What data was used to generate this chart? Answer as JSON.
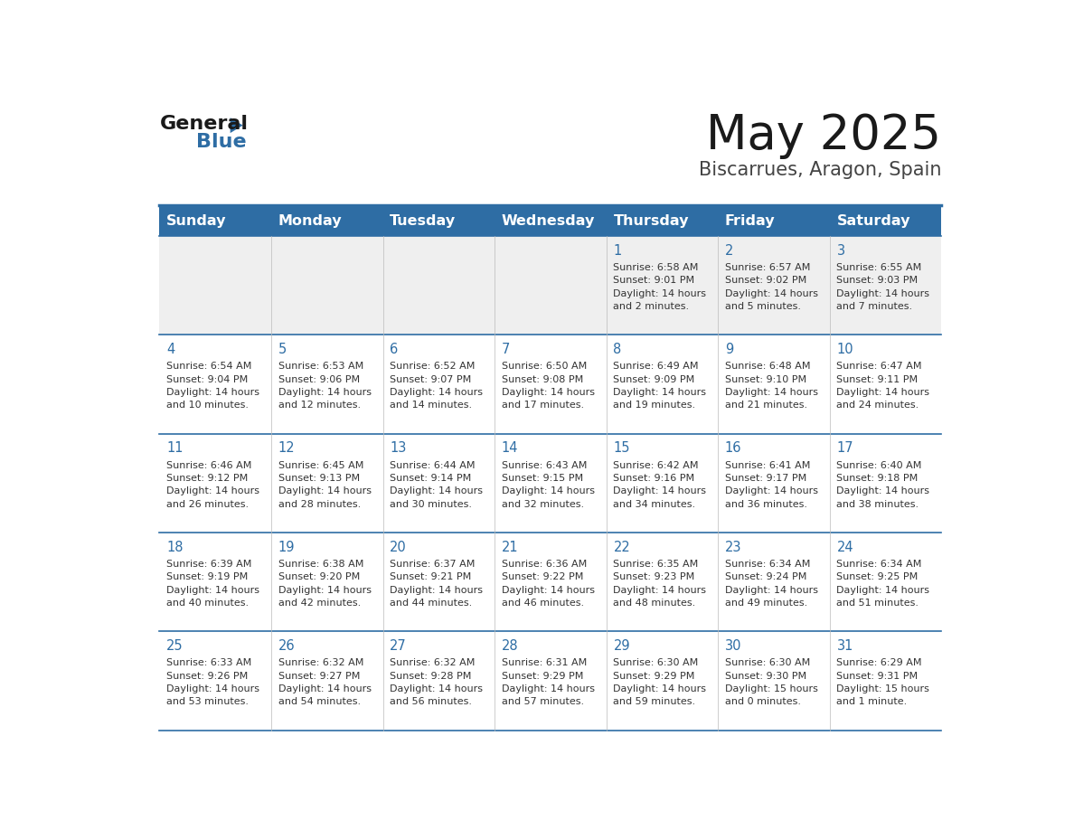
{
  "title": "May 2025",
  "subtitle": "Biscarrues, Aragon, Spain",
  "days_of_week": [
    "Sunday",
    "Monday",
    "Tuesday",
    "Wednesday",
    "Thursday",
    "Friday",
    "Saturday"
  ],
  "header_bg": "#2E6DA4",
  "header_text_color": "#FFFFFF",
  "cell_bg_white": "#FFFFFF",
  "cell_bg_gray": "#EFEFEF",
  "text_color": "#333333",
  "day_num_color": "#2E6DA4",
  "line_color": "#2E6DA4",
  "calendar": [
    [
      null,
      null,
      null,
      null,
      {
        "day": "1",
        "sunrise": "6:58 AM",
        "sunset": "9:01 PM",
        "daylight_l1": "Daylight: 14 hours",
        "daylight_l2": "and 2 minutes."
      },
      {
        "day": "2",
        "sunrise": "6:57 AM",
        "sunset": "9:02 PM",
        "daylight_l1": "Daylight: 14 hours",
        "daylight_l2": "and 5 minutes."
      },
      {
        "day": "3",
        "sunrise": "6:55 AM",
        "sunset": "9:03 PM",
        "daylight_l1": "Daylight: 14 hours",
        "daylight_l2": "and 7 minutes."
      }
    ],
    [
      {
        "day": "4",
        "sunrise": "6:54 AM",
        "sunset": "9:04 PM",
        "daylight_l1": "Daylight: 14 hours",
        "daylight_l2": "and 10 minutes."
      },
      {
        "day": "5",
        "sunrise": "6:53 AM",
        "sunset": "9:06 PM",
        "daylight_l1": "Daylight: 14 hours",
        "daylight_l2": "and 12 minutes."
      },
      {
        "day": "6",
        "sunrise": "6:52 AM",
        "sunset": "9:07 PM",
        "daylight_l1": "Daylight: 14 hours",
        "daylight_l2": "and 14 minutes."
      },
      {
        "day": "7",
        "sunrise": "6:50 AM",
        "sunset": "9:08 PM",
        "daylight_l1": "Daylight: 14 hours",
        "daylight_l2": "and 17 minutes."
      },
      {
        "day": "8",
        "sunrise": "6:49 AM",
        "sunset": "9:09 PM",
        "daylight_l1": "Daylight: 14 hours",
        "daylight_l2": "and 19 minutes."
      },
      {
        "day": "9",
        "sunrise": "6:48 AM",
        "sunset": "9:10 PM",
        "daylight_l1": "Daylight: 14 hours",
        "daylight_l2": "and 21 minutes."
      },
      {
        "day": "10",
        "sunrise": "6:47 AM",
        "sunset": "9:11 PM",
        "daylight_l1": "Daylight: 14 hours",
        "daylight_l2": "and 24 minutes."
      }
    ],
    [
      {
        "day": "11",
        "sunrise": "6:46 AM",
        "sunset": "9:12 PM",
        "daylight_l1": "Daylight: 14 hours",
        "daylight_l2": "and 26 minutes."
      },
      {
        "day": "12",
        "sunrise": "6:45 AM",
        "sunset": "9:13 PM",
        "daylight_l1": "Daylight: 14 hours",
        "daylight_l2": "and 28 minutes."
      },
      {
        "day": "13",
        "sunrise": "6:44 AM",
        "sunset": "9:14 PM",
        "daylight_l1": "Daylight: 14 hours",
        "daylight_l2": "and 30 minutes."
      },
      {
        "day": "14",
        "sunrise": "6:43 AM",
        "sunset": "9:15 PM",
        "daylight_l1": "Daylight: 14 hours",
        "daylight_l2": "and 32 minutes."
      },
      {
        "day": "15",
        "sunrise": "6:42 AM",
        "sunset": "9:16 PM",
        "daylight_l1": "Daylight: 14 hours",
        "daylight_l2": "and 34 minutes."
      },
      {
        "day": "16",
        "sunrise": "6:41 AM",
        "sunset": "9:17 PM",
        "daylight_l1": "Daylight: 14 hours",
        "daylight_l2": "and 36 minutes."
      },
      {
        "day": "17",
        "sunrise": "6:40 AM",
        "sunset": "9:18 PM",
        "daylight_l1": "Daylight: 14 hours",
        "daylight_l2": "and 38 minutes."
      }
    ],
    [
      {
        "day": "18",
        "sunrise": "6:39 AM",
        "sunset": "9:19 PM",
        "daylight_l1": "Daylight: 14 hours",
        "daylight_l2": "and 40 minutes."
      },
      {
        "day": "19",
        "sunrise": "6:38 AM",
        "sunset": "9:20 PM",
        "daylight_l1": "Daylight: 14 hours",
        "daylight_l2": "and 42 minutes."
      },
      {
        "day": "20",
        "sunrise": "6:37 AM",
        "sunset": "9:21 PM",
        "daylight_l1": "Daylight: 14 hours",
        "daylight_l2": "and 44 minutes."
      },
      {
        "day": "21",
        "sunrise": "6:36 AM",
        "sunset": "9:22 PM",
        "daylight_l1": "Daylight: 14 hours",
        "daylight_l2": "and 46 minutes."
      },
      {
        "day": "22",
        "sunrise": "6:35 AM",
        "sunset": "9:23 PM",
        "daylight_l1": "Daylight: 14 hours",
        "daylight_l2": "and 48 minutes."
      },
      {
        "day": "23",
        "sunrise": "6:34 AM",
        "sunset": "9:24 PM",
        "daylight_l1": "Daylight: 14 hours",
        "daylight_l2": "and 49 minutes."
      },
      {
        "day": "24",
        "sunrise": "6:34 AM",
        "sunset": "9:25 PM",
        "daylight_l1": "Daylight: 14 hours",
        "daylight_l2": "and 51 minutes."
      }
    ],
    [
      {
        "day": "25",
        "sunrise": "6:33 AM",
        "sunset": "9:26 PM",
        "daylight_l1": "Daylight: 14 hours",
        "daylight_l2": "and 53 minutes."
      },
      {
        "day": "26",
        "sunrise": "6:32 AM",
        "sunset": "9:27 PM",
        "daylight_l1": "Daylight: 14 hours",
        "daylight_l2": "and 54 minutes."
      },
      {
        "day": "27",
        "sunrise": "6:32 AM",
        "sunset": "9:28 PM",
        "daylight_l1": "Daylight: 14 hours",
        "daylight_l2": "and 56 minutes."
      },
      {
        "day": "28",
        "sunrise": "6:31 AM",
        "sunset": "9:29 PM",
        "daylight_l1": "Daylight: 14 hours",
        "daylight_l2": "and 57 minutes."
      },
      {
        "day": "29",
        "sunrise": "6:30 AM",
        "sunset": "9:29 PM",
        "daylight_l1": "Daylight: 14 hours",
        "daylight_l2": "and 59 minutes."
      },
      {
        "day": "30",
        "sunrise": "6:30 AM",
        "sunset": "9:30 PM",
        "daylight_l1": "Daylight: 15 hours",
        "daylight_l2": "and 0 minutes."
      },
      {
        "day": "31",
        "sunrise": "6:29 AM",
        "sunset": "9:31 PM",
        "daylight_l1": "Daylight: 15 hours",
        "daylight_l2": "and 1 minute."
      }
    ]
  ]
}
